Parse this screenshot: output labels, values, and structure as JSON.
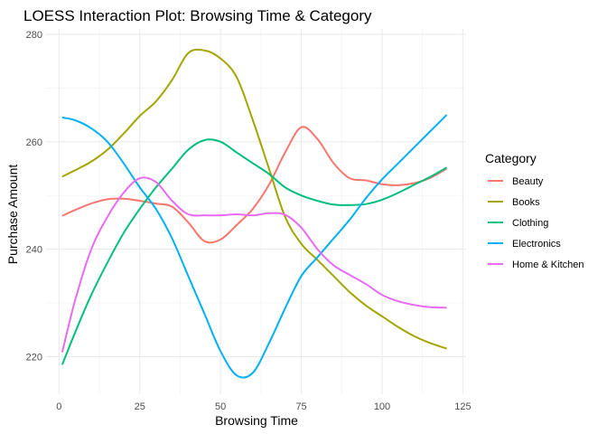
{
  "chart_data": {
    "type": "line",
    "title": "LOESS Interaction Plot: Browsing Time & Category",
    "xlabel": "Browsing Time",
    "ylabel": "Purchase Amount",
    "xlim": [
      -4,
      126
    ],
    "ylim": [
      213,
      281
    ],
    "x_ticks": [
      0,
      25,
      50,
      75,
      100,
      125
    ],
    "y_ticks": [
      220,
      240,
      260,
      280
    ],
    "grid": true,
    "legend_title": "Category",
    "legend_position": "right",
    "series": [
      {
        "name": "Beauty",
        "color": "#F8766D",
        "x": [
          1,
          5,
          10,
          15,
          20,
          25,
          30,
          35,
          40,
          45,
          50,
          55,
          60,
          65,
          70,
          75,
          80,
          85,
          90,
          95,
          100,
          105,
          110,
          115,
          120
        ],
        "y": [
          246.2,
          247.3,
          248.5,
          249.3,
          249.4,
          249.0,
          248.5,
          247.9,
          245.0,
          241.5,
          241.8,
          244.5,
          247.5,
          252.0,
          258.0,
          262.7,
          260.5,
          256.0,
          253.2,
          252.8,
          252.1,
          251.9,
          252.3,
          253.3,
          255.0
        ]
      },
      {
        "name": "Books",
        "color": "#A3A500",
        "x": [
          1,
          5,
          10,
          15,
          20,
          25,
          30,
          35,
          40,
          45,
          50,
          55,
          60,
          65,
          70,
          75,
          80,
          85,
          90,
          95,
          100,
          105,
          110,
          115,
          120
        ],
        "y": [
          253.5,
          254.7,
          256.3,
          258.5,
          261.5,
          264.8,
          267.5,
          271.5,
          276.5,
          277.0,
          275.5,
          272.0,
          264.0,
          255.0,
          246.0,
          241.0,
          238.0,
          235.0,
          232.0,
          229.5,
          227.5,
          225.5,
          223.8,
          222.5,
          221.5
        ]
      },
      {
        "name": "Clothing",
        "color": "#00BF7D",
        "x": [
          1,
          5,
          10,
          15,
          20,
          25,
          30,
          35,
          40,
          45,
          50,
          55,
          60,
          65,
          70,
          75,
          80,
          85,
          90,
          95,
          100,
          105,
          110,
          115,
          120
        ],
        "y": [
          218.5,
          224.5,
          231.5,
          237.5,
          243.0,
          247.5,
          251.5,
          255.0,
          258.5,
          260.3,
          260.0,
          258.0,
          256.0,
          254.0,
          251.5,
          250.0,
          249.0,
          248.3,
          248.2,
          248.4,
          249.2,
          250.5,
          252.0,
          253.5,
          255.2
        ]
      },
      {
        "name": "Electronics",
        "color": "#00B0F6",
        "x": [
          1,
          5,
          10,
          15,
          20,
          25,
          30,
          35,
          40,
          45,
          50,
          55,
          60,
          65,
          70,
          75,
          80,
          85,
          90,
          95,
          100,
          105,
          110,
          115,
          120
        ],
        "y": [
          264.5,
          264.0,
          262.5,
          260.0,
          256.0,
          251.5,
          247.5,
          242.0,
          235.0,
          228.0,
          221.0,
          216.5,
          217.0,
          222.5,
          229.0,
          235.0,
          238.5,
          242.0,
          245.5,
          249.5,
          253.0,
          256.0,
          259.0,
          262.0,
          265.0
        ]
      },
      {
        "name": "Home & Kitchen",
        "color": "#E76BF3",
        "x": [
          1,
          5,
          10,
          15,
          20,
          25,
          30,
          35,
          40,
          45,
          50,
          55,
          60,
          65,
          70,
          75,
          80,
          85,
          90,
          95,
          100,
          105,
          110,
          115,
          120
        ],
        "y": [
          220.8,
          230.5,
          240.0,
          246.0,
          250.5,
          253.2,
          252.5,
          249.0,
          246.5,
          246.3,
          246.3,
          246.5,
          246.3,
          246.7,
          246.4,
          244.0,
          240.0,
          237.0,
          235.2,
          233.5,
          231.5,
          230.3,
          229.6,
          229.2,
          229.1
        ]
      }
    ]
  }
}
